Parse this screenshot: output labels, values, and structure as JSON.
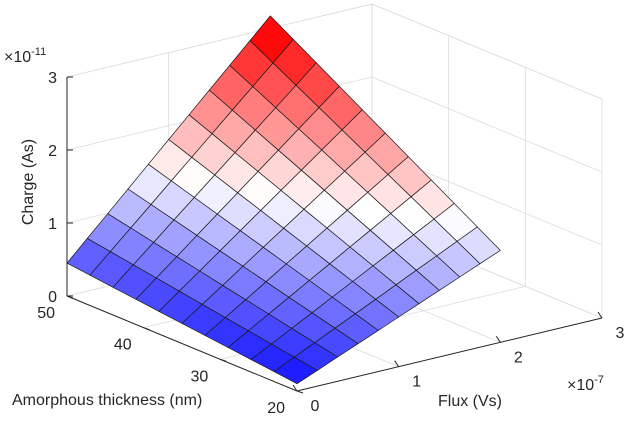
{
  "chart_data": {
    "type": "surface",
    "zlabel": "Charge (As)",
    "xlabel": "Flux (Vs)",
    "ylabel": "Amorphous thickness (nm)",
    "z_exponent_label": "×10",
    "z_exponent_power": "-11",
    "x_exponent_label": "×10",
    "x_exponent_power": "-7",
    "xlim": [
      0,
      3
    ],
    "ylim": [
      20,
      50
    ],
    "zlim": [
      0,
      3
    ],
    "x_ticks": [
      "0",
      "1",
      "2",
      "3"
    ],
    "y_ticks": [
      "20",
      "30",
      "40",
      "50"
    ],
    "z_ticks": [
      "0",
      "1",
      "2",
      "3"
    ],
    "grid": true,
    "colormap": [
      "#0000ff",
      "#ffffff",
      "#ff0000"
    ],
    "clim": [
      0,
      3
    ],
    "x": [
      0.0,
      0.2,
      0.4,
      0.6,
      0.8,
      1.0,
      1.2,
      1.4,
      1.6,
      1.8,
      2.0
    ],
    "y": [
      20,
      23,
      26,
      29,
      32,
      35,
      38,
      41,
      44,
      47,
      50
    ],
    "z_description": "Charge rises with flux and with amorphous thickness; approx. 0.1 at (0,20) up to about 2.9 at (2.0,50), and about 1.3 at (2.0,20)"
  }
}
